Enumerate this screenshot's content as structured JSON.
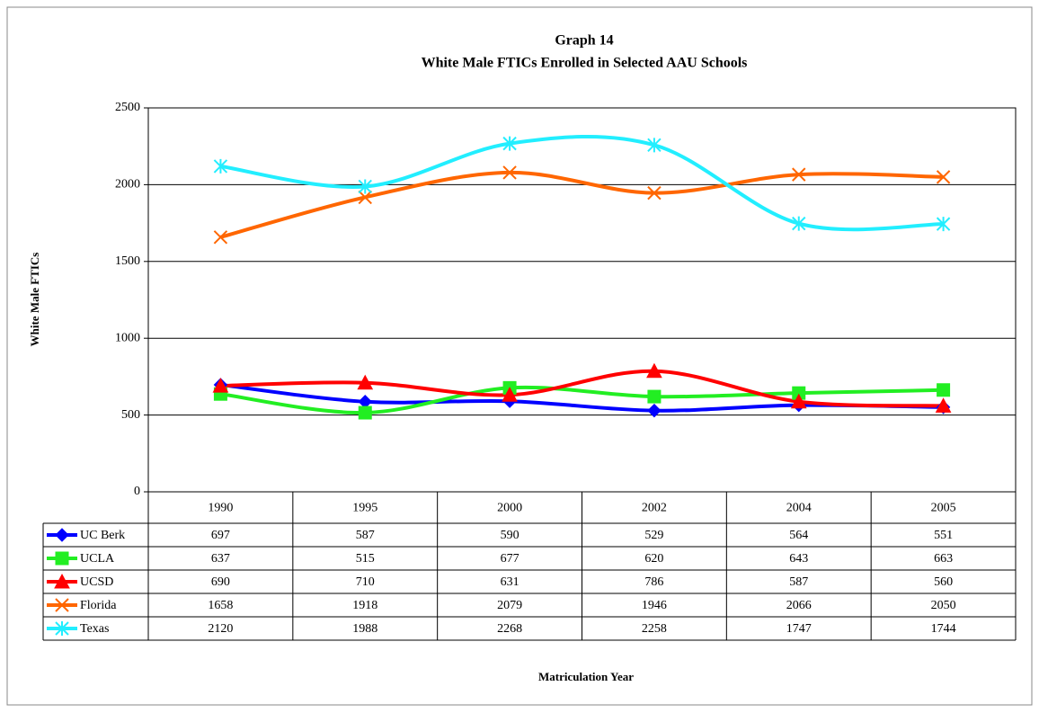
{
  "chart_data": {
    "type": "line",
    "title": "Graph 14",
    "subtitle": "White Male FTICs Enrolled in Selected AAU Schools",
    "y_label": "White Male FTICs",
    "x_label": "Matriculation Year",
    "categories": [
      "1990",
      "1995",
      "2000",
      "2002",
      "2004",
      "2005"
    ],
    "ylim": [
      0,
      2500
    ],
    "yticks": [
      0,
      500,
      1000,
      1500,
      2000,
      2500
    ],
    "grid": true,
    "smooth": true,
    "series": [
      {
        "name": "UC Berk",
        "color": "#0000ff",
        "marker": "diamond",
        "values": [
          697,
          587,
          590,
          529,
          564,
          551
        ]
      },
      {
        "name": "UCLA",
        "color": "#22ee22",
        "marker": "square",
        "values": [
          637,
          515,
          677,
          620,
          643,
          663
        ]
      },
      {
        "name": "UCSD",
        "color": "#ff0000",
        "marker": "triangle",
        "values": [
          690,
          710,
          631,
          786,
          587,
          560
        ]
      },
      {
        "name": "Florida",
        "color": "#ff6600",
        "marker": "x",
        "values": [
          1658,
          1918,
          2079,
          1946,
          2066,
          2050
        ]
      },
      {
        "name": "Texas",
        "color": "#22eeff",
        "marker": "star",
        "values": [
          2120,
          1988,
          2268,
          2258,
          1747,
          1744
        ]
      }
    ]
  }
}
